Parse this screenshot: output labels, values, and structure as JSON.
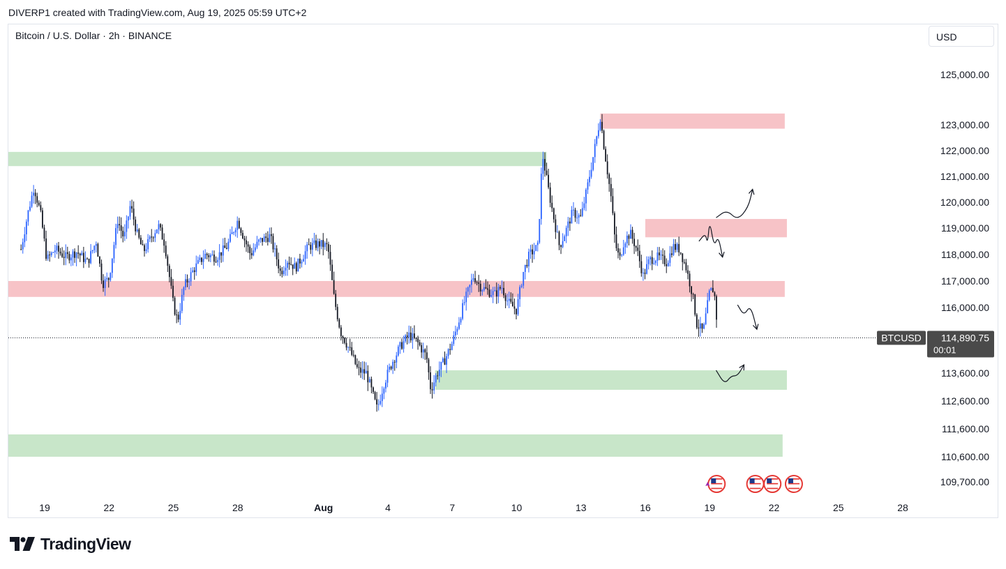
{
  "header": {
    "credit": "DIVERP1 created with TradingView.com, Aug 19, 2025 05:59 UTC+2"
  },
  "symbol_title": "Bitcoin / U.S. Dollar · 2h · BINANCE",
  "currency_label": "USD",
  "price_tag": {
    "symbol": "BTCUSD",
    "price": "114,890.75",
    "countdown": "00:01",
    "value": 114890.75
  },
  "footer": {
    "brand": "TradingView"
  },
  "colors": {
    "up": "#2962ff",
    "down": "#131722",
    "resistance_zone": "#f7c3c7",
    "support_zone": "#c8e6c9",
    "price_label_bg": "#4a4a4a",
    "grid_text": "#131722"
  },
  "icons": [
    "economic-event-flag-icon",
    "tradingview-logo-icon"
  ],
  "chart_data": {
    "type": "candlestick",
    "title": "Bitcoin / U.S. Dollar · 2h · BINANCE",
    "y_ticks": [
      {
        "value": 125000,
        "label": "125,000.00"
      },
      {
        "value": 123000,
        "label": "123,000.00"
      },
      {
        "value": 122000,
        "label": "122,000.00"
      },
      {
        "value": 121000,
        "label": "121,000.00"
      },
      {
        "value": 120000,
        "label": "120,000.00"
      },
      {
        "value": 119000,
        "label": "119,000.00"
      },
      {
        "value": 118000,
        "label": "118,000.00"
      },
      {
        "value": 117000,
        "label": "117,000.00"
      },
      {
        "value": 116000,
        "label": "116,000.00"
      },
      {
        "value": 113600,
        "label": "113,600.00"
      },
      {
        "value": 112600,
        "label": "112,600.00"
      },
      {
        "value": 111600,
        "label": "111,600.00"
      },
      {
        "value": 110600,
        "label": "110,600.00"
      },
      {
        "value": 109700,
        "label": "109,700.00"
      }
    ],
    "x_ticks": [
      {
        "day": 19,
        "label": "19"
      },
      {
        "day": 22,
        "label": "22"
      },
      {
        "day": 25,
        "label": "25"
      },
      {
        "day": 28,
        "label": "28"
      },
      {
        "day": 32,
        "label": "Aug",
        "bold": true
      },
      {
        "day": 35,
        "label": "4"
      },
      {
        "day": 38,
        "label": "7"
      },
      {
        "day": 41,
        "label": "10"
      },
      {
        "day": 44,
        "label": "13"
      },
      {
        "day": 47,
        "label": "16"
      },
      {
        "day": 50,
        "label": "19"
      },
      {
        "day": 53,
        "label": "22"
      },
      {
        "day": 56,
        "label": "25"
      },
      {
        "day": 59,
        "label": "28"
      }
    ],
    "price_path": [
      [
        17.9,
        118200
      ],
      [
        18.2,
        119500
      ],
      [
        18.5,
        120600
      ],
      [
        18.8,
        119600
      ],
      [
        19.1,
        117800
      ],
      [
        19.5,
        118200
      ],
      [
        20.0,
        117900
      ],
      [
        20.5,
        118100
      ],
      [
        21.0,
        117700
      ],
      [
        21.4,
        118500
      ],
      [
        21.7,
        116900
      ],
      [
        22.0,
        117100
      ],
      [
        22.4,
        119300
      ],
      [
        22.7,
        118600
      ],
      [
        23.0,
        119900
      ],
      [
        23.3,
        118800
      ],
      [
        23.6,
        118100
      ],
      [
        24.0,
        118700
      ],
      [
        24.3,
        119100
      ],
      [
        24.6,
        118400
      ],
      [
        25.0,
        116100
      ],
      [
        25.2,
        115500
      ],
      [
        25.5,
        116800
      ],
      [
        26.0,
        117500
      ],
      [
        26.5,
        118000
      ],
      [
        27.0,
        117900
      ],
      [
        27.5,
        118300
      ],
      [
        28.0,
        119300
      ],
      [
        28.3,
        118600
      ],
      [
        28.6,
        118000
      ],
      [
        29.0,
        118500
      ],
      [
        29.5,
        118700
      ],
      [
        29.8,
        117900
      ],
      [
        30.0,
        117300
      ],
      [
        30.3,
        117800
      ],
      [
        30.7,
        117500
      ],
      [
        31.0,
        117900
      ],
      [
        31.3,
        118300
      ],
      [
        31.8,
        118400
      ],
      [
        32.2,
        118300
      ],
      [
        32.5,
        116300
      ],
      [
        32.8,
        115100
      ],
      [
        33.0,
        114800
      ],
      [
        33.3,
        114300
      ],
      [
        33.6,
        113700
      ],
      [
        34.0,
        113600
      ],
      [
        34.3,
        112800
      ],
      [
        34.5,
        112300
      ],
      [
        34.8,
        113200
      ],
      [
        35.2,
        114000
      ],
      [
        35.6,
        114600
      ],
      [
        36.0,
        115000
      ],
      [
        36.4,
        114700
      ],
      [
        36.8,
        114200
      ],
      [
        37.0,
        113000
      ],
      [
        37.3,
        113600
      ],
      [
        37.6,
        114000
      ],
      [
        38.0,
        114700
      ],
      [
        38.3,
        115500
      ],
      [
        38.6,
        116300
      ],
      [
        39.0,
        117200
      ],
      [
        39.3,
        116800
      ],
      [
        39.7,
        116600
      ],
      [
        40.0,
        116500
      ],
      [
        40.3,
        116800
      ],
      [
        40.6,
        116200
      ],
      [
        41.0,
        115900
      ],
      [
        41.3,
        117300
      ],
      [
        41.6,
        118000
      ],
      [
        42.0,
        118300
      ],
      [
        42.2,
        121900
      ],
      [
        42.5,
        120400
      ],
      [
        42.8,
        119100
      ],
      [
        43.0,
        118300
      ],
      [
        43.3,
        118900
      ],
      [
        43.6,
        119600
      ],
      [
        44.0,
        119400
      ],
      [
        44.3,
        120600
      ],
      [
        44.6,
        121900
      ],
      [
        44.9,
        123300
      ],
      [
        45.1,
        122000
      ],
      [
        45.4,
        120200
      ],
      [
        45.6,
        118400
      ],
      [
        45.8,
        117800
      ],
      [
        46.0,
        118500
      ],
      [
        46.3,
        118800
      ],
      [
        46.6,
        118200
      ],
      [
        46.9,
        117200
      ],
      [
        47.2,
        117800
      ],
      [
        47.6,
        117900
      ],
      [
        48.0,
        117700
      ],
      [
        48.3,
        118300
      ],
      [
        48.6,
        118200
      ],
      [
        48.9,
        117500
      ],
      [
        49.2,
        116500
      ],
      [
        49.4,
        115400
      ],
      [
        49.7,
        115100
      ],
      [
        50.0,
        116600
      ],
      [
        50.2,
        116700
      ],
      [
        50.4,
        114890
      ]
    ],
    "zones": [
      {
        "type": "resistance",
        "x0": 44.9,
        "x1": 53.5,
        "y0": 122850,
        "y1": 123450
      },
      {
        "type": "support",
        "x0": 17.0,
        "x1": 42.4,
        "y0": 121400,
        "y1": 121950
      },
      {
        "type": "resistance",
        "x0": 47.0,
        "x1": 53.6,
        "y0": 118650,
        "y1": 119350
      },
      {
        "type": "resistance",
        "x0": 17.0,
        "x1": 53.5,
        "y0": 116400,
        "y1": 117000
      },
      {
        "type": "support",
        "x0": 37.2,
        "x1": 53.6,
        "y0": 113000,
        "y1": 113700
      },
      {
        "type": "support",
        "x0": 17.0,
        "x1": 53.4,
        "y0": 110600,
        "y1": 111400
      }
    ],
    "scenario_arrows": [
      {
        "name": "bullish-breakout",
        "points": [
          [
            50.3,
            119400
          ],
          [
            50.8,
            119700
          ],
          [
            51.3,
            119300
          ],
          [
            51.8,
            119800
          ],
          [
            52.0,
            120500
          ]
        ]
      },
      {
        "name": "rejection-drop",
        "points": [
          [
            49.5,
            118500
          ],
          [
            49.8,
            118800
          ],
          [
            49.9,
            118400
          ],
          [
            50.0,
            119300
          ],
          [
            50.2,
            118300
          ],
          [
            50.4,
            118700
          ],
          [
            50.6,
            117900
          ]
        ]
      },
      {
        "name": "bearish-continuation",
        "points": [
          [
            51.3,
            116100
          ],
          [
            51.6,
            115700
          ],
          [
            51.9,
            116100
          ],
          [
            52.2,
            115200
          ]
        ]
      },
      {
        "name": "support-bounce",
        "points": [
          [
            50.3,
            113700
          ],
          [
            50.7,
            113200
          ],
          [
            51.0,
            113500
          ],
          [
            51.3,
            113500
          ],
          [
            51.6,
            113900
          ]
        ]
      }
    ],
    "event_markers": [
      50.0,
      51.8,
      52.6,
      53.6
    ],
    "last_price": 114890.75
  }
}
